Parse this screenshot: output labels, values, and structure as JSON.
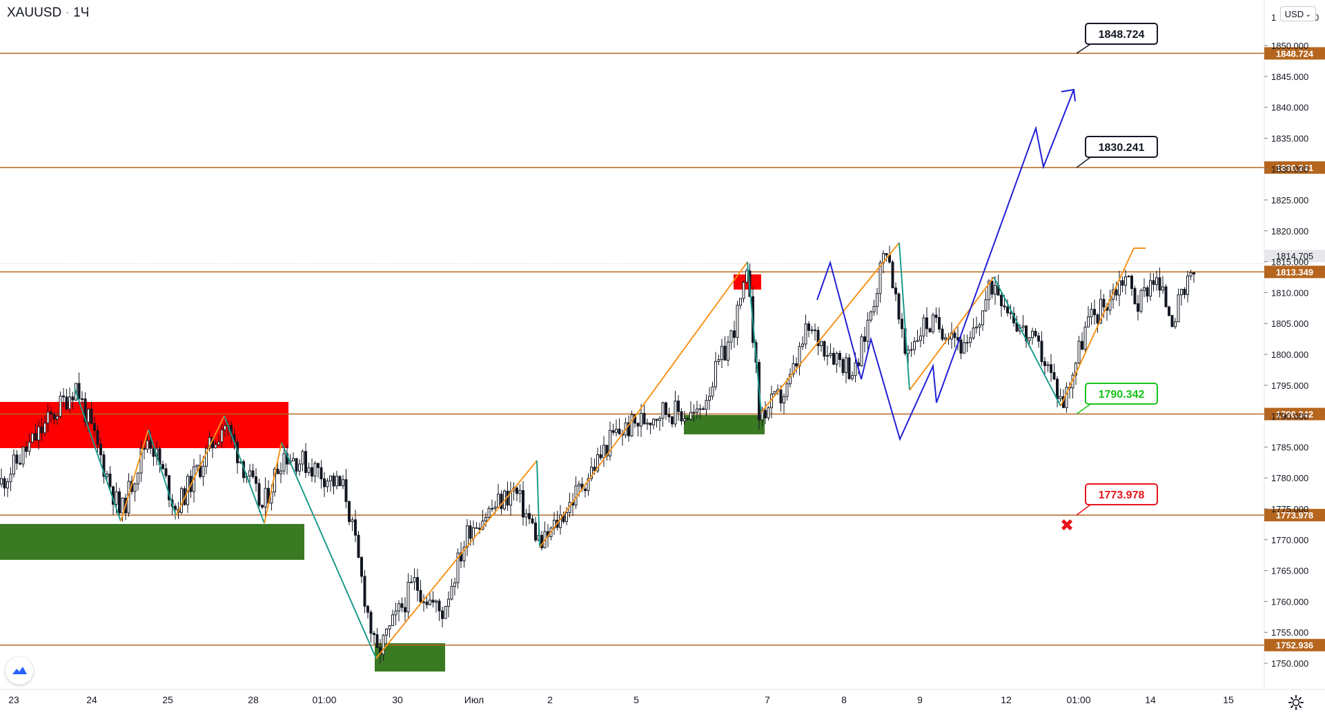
{
  "symbol": "XAUUSD",
  "interval": "1Ч",
  "title_sep": "·",
  "currency_label": "USD",
  "currency_arrow": "⌄",
  "colors": {
    "level": "#b5651d",
    "up_candle": "#131722",
    "zigzag_up": "#f7941d",
    "zigzag_down": "#1a9b8c",
    "forecast": "#1f1fd6",
    "demand_zone": "#3a7a22",
    "supply_zone": "#ff0000",
    "label_green": "#16c216",
    "label_red": "#e8141c"
  },
  "price_axis": {
    "top_label": "1",
    "top_label_suffix": "0",
    "ticks": [
      "1850.000",
      "1845.000",
      "1840.000",
      "1835.000",
      "1830.000",
      "1825.000",
      "1820.000",
      "1815.000",
      "1810.000",
      "1805.000",
      "1800.000",
      "1795.000",
      "1790.000",
      "1785.000",
      "1780.000",
      "1775.000",
      "1770.000",
      "1765.000",
      "1760.000",
      "1755.000",
      "1750.000"
    ],
    "current_price": "1814.705"
  },
  "time_axis": {
    "labels": [
      "23",
      "24",
      "25",
      "28",
      "01:00",
      "30",
      "Июл",
      "2",
      "5",
      "7",
      "8",
      "9",
      "12",
      "01:00",
      "14",
      "15"
    ]
  },
  "chart_data": {
    "type": "candlestick",
    "ylim": [
      1747,
      1851
    ],
    "levels": [
      {
        "price": 1848.724,
        "label": "1848.724"
      },
      {
        "price": 1830.241,
        "label": "1830.241"
      },
      {
        "price": 1813.349,
        "label": "1813.349"
      },
      {
        "price": 1790.342,
        "label": "1790.342"
      },
      {
        "price": 1773.978,
        "label": "1773.978"
      },
      {
        "price": 1752.936,
        "label": "1752.936"
      }
    ],
    "callouts": [
      {
        "text": "1848.724",
        "style": "black"
      },
      {
        "text": "1830.241",
        "style": "black"
      },
      {
        "text": "1790.342",
        "style": "green"
      },
      {
        "text": "1773.978",
        "style": "red"
      }
    ],
    "stop_marker": "✖"
  }
}
